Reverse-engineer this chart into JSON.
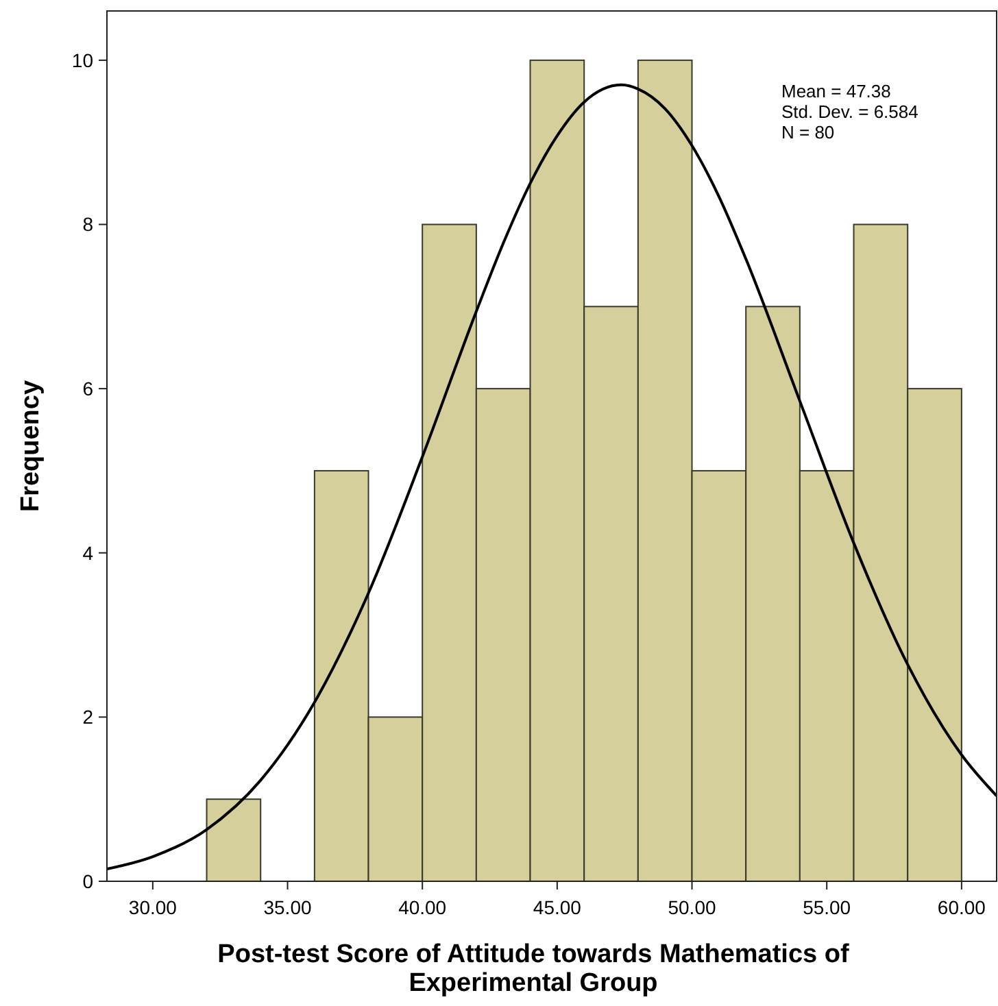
{
  "chart_data": {
    "type": "histogram",
    "xlabel": "Post-test Score of Attitude towards Mathematics of Experimental Group",
    "ylabel": "Frequency",
    "bins": [
      32,
      34,
      36,
      38,
      40,
      42,
      44,
      46,
      48,
      50,
      52,
      54,
      56,
      58,
      60
    ],
    "values": [
      1,
      0,
      5,
      2,
      8,
      6,
      10,
      7,
      10,
      5,
      7,
      5,
      8,
      6
    ],
    "color": "#d4cf9b",
    "series": [
      {
        "type": "line",
        "color": "#000000",
        "x": [
          28.3,
          30,
          32,
          34,
          36,
          38,
          40,
          42,
          43,
          44,
          45,
          46,
          47.38,
          48,
          49,
          50,
          51,
          52,
          54,
          56,
          58,
          60,
          61.3
        ],
        "values": [
          0.15,
          0.3,
          0.63,
          1.23,
          2.18,
          3.51,
          5.17,
          6.94,
          7.77,
          8.5,
          9.08,
          9.49,
          9.7,
          9.65,
          9.41,
          8.96,
          8.34,
          7.58,
          5.85,
          4.12,
          2.64,
          1.54,
          1.04
        ]
      }
    ],
    "xlim": [
      28.3,
      61.3
    ],
    "ylim": [
      0,
      10.6
    ],
    "xticks": [
      {
        "value": 30,
        "label": "30.00"
      },
      {
        "value": 35,
        "label": "35.00"
      },
      {
        "value": 40,
        "label": "40.00"
      },
      {
        "value": 45,
        "label": "45.00"
      },
      {
        "value": 50,
        "label": "50.00"
      },
      {
        "value": 55,
        "label": "55.00"
      },
      {
        "value": 60,
        "label": "60.00"
      }
    ],
    "yticks": [
      0,
      2,
      4,
      6,
      8,
      10
    ],
    "annotations": [
      "Mean = 47.38",
      "Std. Dev. = 6.584",
      "N = 80"
    ],
    "grid": false
  }
}
